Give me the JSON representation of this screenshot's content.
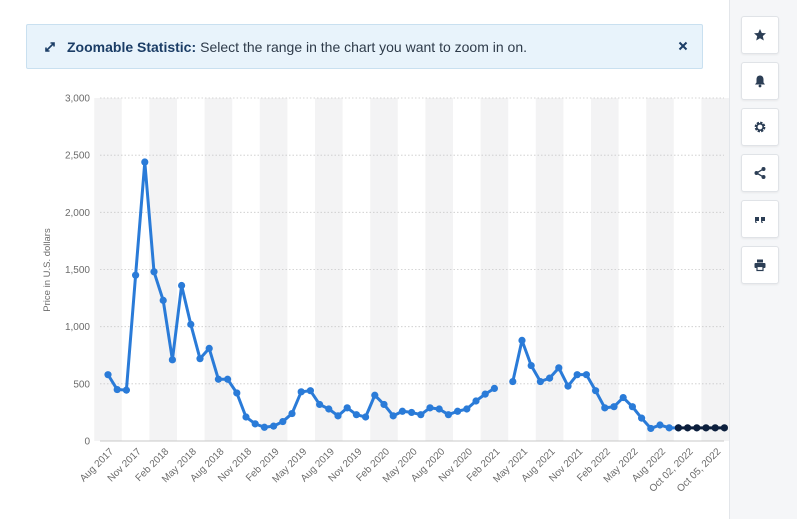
{
  "banner": {
    "title": "Zoomable Statistic:",
    "message": "Select the range in the chart you want to zoom in on."
  },
  "toolbar": {
    "icons": [
      "star-icon",
      "bell-icon",
      "gear-icon",
      "share-icon",
      "quote-icon",
      "print-icon"
    ]
  },
  "colors": {
    "line": "#2a7bd8",
    "projection": "#0c1f3d",
    "grid": "#c9c9c9",
    "band": "#f3f3f4"
  },
  "chart_data": {
    "type": "line",
    "ylabel": "Price in U.S. dollars",
    "ylim": [
      0,
      3000
    ],
    "yticks": [
      0,
      500,
      1000,
      1500,
      2000,
      2500,
      3000
    ],
    "ytick_labels": [
      "0",
      "500",
      "1,000",
      "1,500",
      "2,000",
      "2,500",
      "3,000"
    ],
    "grid": true,
    "x_labels": [
      "Aug 2017",
      "Nov 2017",
      "Feb 2018",
      "May 2018",
      "Aug 2018",
      "Nov 2018",
      "Feb 2019",
      "May 2019",
      "Aug 2019",
      "Nov 2019",
      "Feb 2020",
      "May 2020",
      "Aug 2020",
      "Nov 2020",
      "Feb 2021",
      "May 2021",
      "Aug 2021",
      "Nov 2021",
      "Feb 2022",
      "May 2022",
      "Aug 2022",
      "Oct 02, 2022",
      "Oct 05, 2022"
    ],
    "series": [
      {
        "values": [
          580,
          450,
          445,
          1450,
          2440,
          1480,
          1230,
          710,
          1360,
          1020,
          720,
          810,
          540,
          540,
          420,
          210,
          150,
          120,
          130,
          170,
          240,
          430,
          440,
          320,
          280,
          220,
          290,
          230,
          210,
          400,
          320,
          220,
          260,
          250,
          230,
          290,
          280,
          230,
          260,
          280,
          350,
          410,
          460,
          null,
          520,
          880,
          660,
          520,
          550,
          640,
          480,
          580,
          580,
          440,
          290,
          300,
          380,
          300,
          200,
          110,
          140,
          115,
          115
        ]
      },
      {
        "values": [
          null,
          null,
          null,
          null,
          null,
          null,
          null,
          null,
          null,
          null,
          null,
          null,
          null,
          null,
          null,
          null,
          null,
          null,
          null,
          null,
          null,
          null,
          null,
          null,
          null,
          null,
          null,
          null,
          null,
          null,
          null,
          null,
          null,
          null,
          null,
          null,
          null,
          null,
          null,
          null,
          null,
          null,
          null,
          null,
          null,
          null,
          null,
          null,
          null,
          null,
          null,
          null,
          null,
          null,
          null,
          null,
          null,
          null,
          null,
          null,
          null,
          null,
          115,
          115,
          115,
          115,
          115,
          115
        ]
      }
    ]
  }
}
